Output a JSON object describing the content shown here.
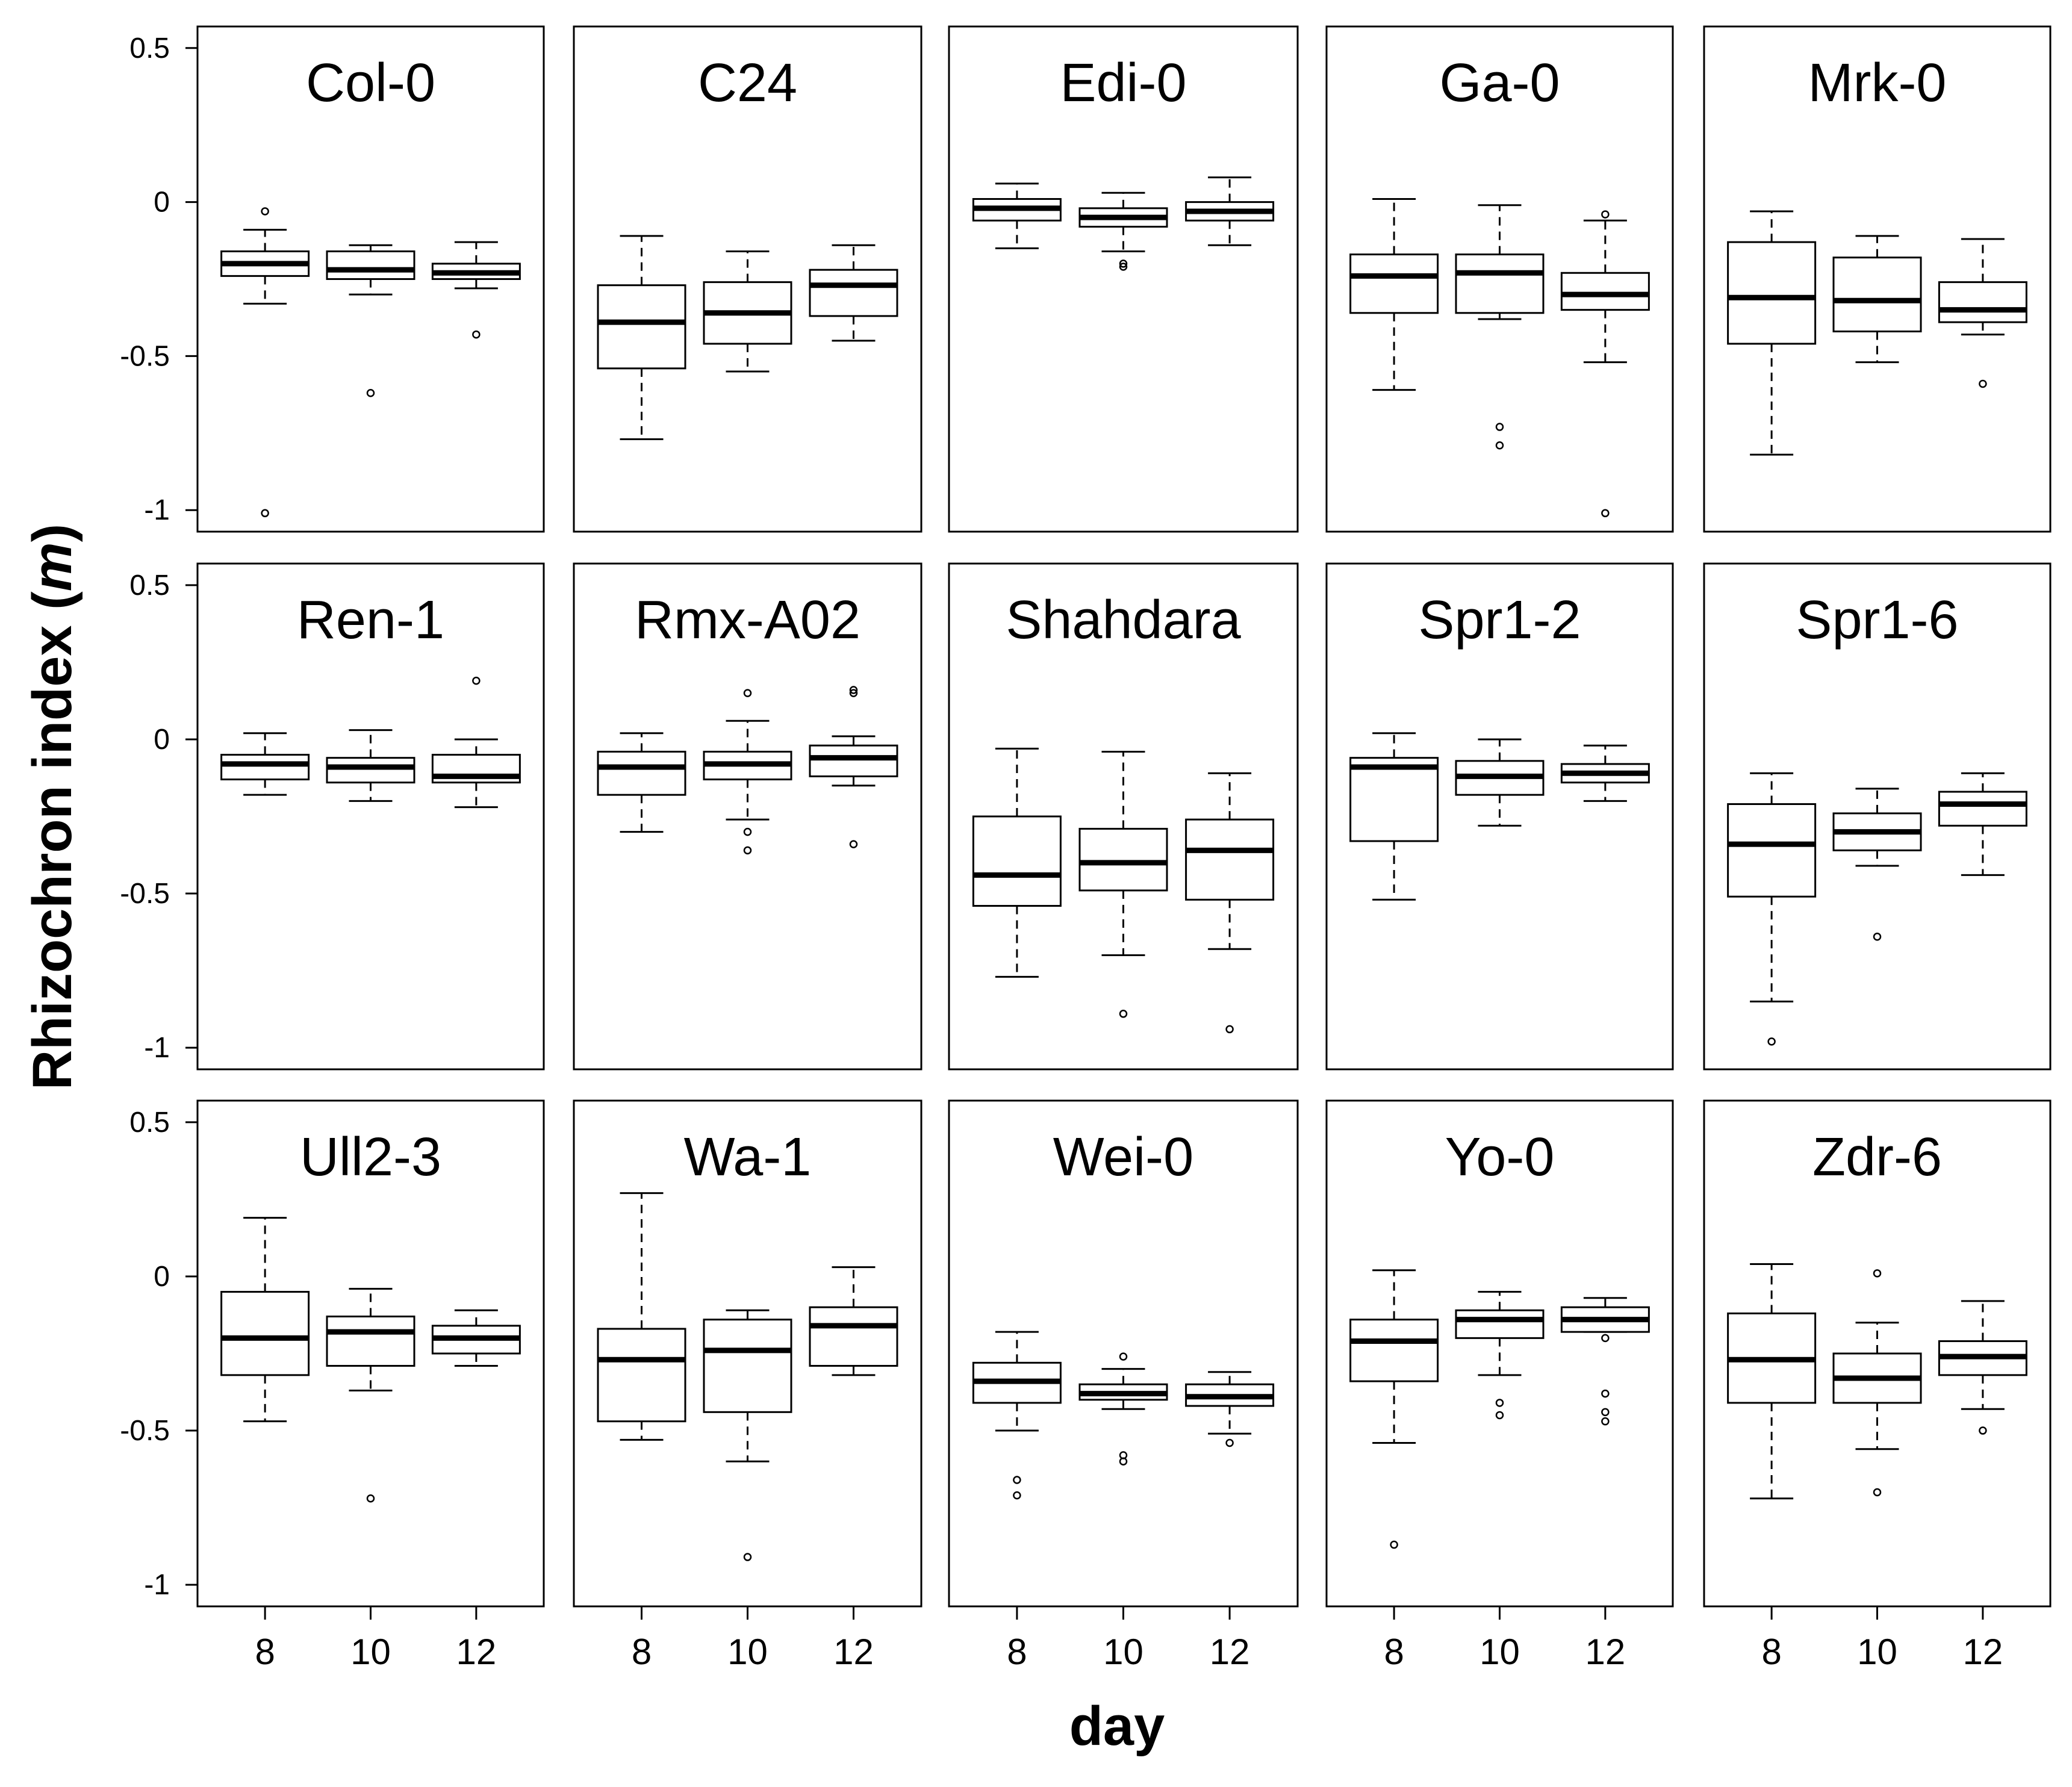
{
  "chart_data": {
    "type": "boxplot",
    "layout": "small-multiples 3 rows x 5 columns",
    "ylabel": "Rhizochron index",
    "ylabel_unit": "m",
    "xlabel": "day",
    "yticks": [
      0.5,
      0,
      -0.5,
      -1
    ],
    "ytick_labels": [
      "0.5",
      "0",
      "-0.5",
      "-1"
    ],
    "ylim": [
      -1.07,
      0.57
    ],
    "x_categories": [
      "8",
      "10",
      "12"
    ],
    "panels": [
      {
        "title": "Col-0",
        "boxes": [
          {
            "day": "8",
            "whisker_low": -0.33,
            "q1": -0.24,
            "median": -0.2,
            "q3": -0.16,
            "whisker_high": -0.09,
            "outliers": [
              -0.03,
              -1.01
            ]
          },
          {
            "day": "10",
            "whisker_low": -0.3,
            "q1": -0.25,
            "median": -0.22,
            "q3": -0.16,
            "whisker_high": -0.14,
            "outliers": [
              -0.62
            ]
          },
          {
            "day": "12",
            "whisker_low": -0.28,
            "q1": -0.25,
            "median": -0.23,
            "q3": -0.2,
            "whisker_high": -0.13,
            "outliers": [
              -0.43
            ]
          }
        ]
      },
      {
        "title": "C24",
        "boxes": [
          {
            "day": "8",
            "whisker_low": -0.77,
            "q1": -0.54,
            "median": -0.39,
            "q3": -0.27,
            "whisker_high": -0.11,
            "outliers": []
          },
          {
            "day": "10",
            "whisker_low": -0.55,
            "q1": -0.46,
            "median": -0.36,
            "q3": -0.26,
            "whisker_high": -0.16,
            "outliers": []
          },
          {
            "day": "12",
            "whisker_low": -0.45,
            "q1": -0.37,
            "median": -0.27,
            "q3": -0.22,
            "whisker_high": -0.14,
            "outliers": []
          }
        ]
      },
      {
        "title": "Edi-0",
        "boxes": [
          {
            "day": "8",
            "whisker_low": -0.15,
            "q1": -0.06,
            "median": -0.02,
            "q3": 0.01,
            "whisker_high": 0.06,
            "outliers": []
          },
          {
            "day": "10",
            "whisker_low": -0.16,
            "q1": -0.08,
            "median": -0.05,
            "q3": -0.02,
            "whisker_high": 0.03,
            "outliers": [
              -0.21,
              -0.2
            ]
          },
          {
            "day": "12",
            "whisker_low": -0.14,
            "q1": -0.06,
            "median": -0.03,
            "q3": 0.0,
            "whisker_high": 0.08,
            "outliers": []
          }
        ]
      },
      {
        "title": "Ga-0",
        "boxes": [
          {
            "day": "8",
            "whisker_low": -0.61,
            "q1": -0.36,
            "median": -0.24,
            "q3": -0.17,
            "whisker_high": 0.01,
            "outliers": []
          },
          {
            "day": "10",
            "whisker_low": -0.38,
            "q1": -0.36,
            "median": -0.23,
            "q3": -0.17,
            "whisker_high": -0.01,
            "outliers": [
              -0.73,
              -0.79
            ]
          },
          {
            "day": "12",
            "whisker_low": -0.52,
            "q1": -0.35,
            "median": -0.3,
            "q3": -0.23,
            "whisker_high": -0.06,
            "outliers": [
              -0.04,
              -1.01
            ]
          }
        ]
      },
      {
        "title": "Mrk-0",
        "boxes": [
          {
            "day": "8",
            "whisker_low": -0.82,
            "q1": -0.46,
            "median": -0.31,
            "q3": -0.13,
            "whisker_high": -0.03,
            "outliers": []
          },
          {
            "day": "10",
            "whisker_low": -0.52,
            "q1": -0.42,
            "median": -0.32,
            "q3": -0.18,
            "whisker_high": -0.11,
            "outliers": []
          },
          {
            "day": "12",
            "whisker_low": -0.43,
            "q1": -0.39,
            "median": -0.35,
            "q3": -0.26,
            "whisker_high": -0.12,
            "outliers": [
              -0.59
            ]
          }
        ]
      },
      {
        "title": "Ren-1",
        "boxes": [
          {
            "day": "8",
            "whisker_low": -0.18,
            "q1": -0.13,
            "median": -0.08,
            "q3": -0.05,
            "whisker_high": 0.02,
            "outliers": []
          },
          {
            "day": "10",
            "whisker_low": -0.2,
            "q1": -0.14,
            "median": -0.09,
            "q3": -0.06,
            "whisker_high": 0.03,
            "outliers": []
          },
          {
            "day": "12",
            "whisker_low": -0.22,
            "q1": -0.14,
            "median": -0.12,
            "q3": -0.05,
            "whisker_high": 0.0,
            "outliers": [
              0.19
            ]
          }
        ]
      },
      {
        "title": "Rmx-A02",
        "boxes": [
          {
            "day": "8",
            "whisker_low": -0.3,
            "q1": -0.18,
            "median": -0.09,
            "q3": -0.04,
            "whisker_high": 0.02,
            "outliers": []
          },
          {
            "day": "10",
            "whisker_low": -0.26,
            "q1": -0.13,
            "median": -0.08,
            "q3": -0.04,
            "whisker_high": 0.06,
            "outliers": [
              0.15,
              -0.3,
              -0.36
            ]
          },
          {
            "day": "12",
            "whisker_low": -0.15,
            "q1": -0.12,
            "median": -0.06,
            "q3": -0.02,
            "whisker_high": 0.01,
            "outliers": [
              0.16,
              0.15,
              -0.34
            ]
          }
        ]
      },
      {
        "title": "Shahdara",
        "boxes": [
          {
            "day": "8",
            "whisker_low": -0.77,
            "q1": -0.54,
            "median": -0.44,
            "q3": -0.25,
            "whisker_high": -0.03,
            "outliers": []
          },
          {
            "day": "10",
            "whisker_low": -0.7,
            "q1": -0.49,
            "median": -0.4,
            "q3": -0.29,
            "whisker_high": -0.04,
            "outliers": [
              -0.89
            ]
          },
          {
            "day": "12",
            "whisker_low": -0.68,
            "q1": -0.52,
            "median": -0.36,
            "q3": -0.26,
            "whisker_high": -0.11,
            "outliers": [
              -0.94
            ]
          }
        ]
      },
      {
        "title": "Spr1-2",
        "boxes": [
          {
            "day": "8",
            "whisker_low": -0.52,
            "q1": -0.33,
            "median": -0.09,
            "q3": -0.06,
            "whisker_high": 0.02,
            "outliers": []
          },
          {
            "day": "10",
            "whisker_low": -0.28,
            "q1": -0.18,
            "median": -0.12,
            "q3": -0.07,
            "whisker_high": 0.0,
            "outliers": []
          },
          {
            "day": "12",
            "whisker_low": -0.2,
            "q1": -0.14,
            "median": -0.11,
            "q3": -0.08,
            "whisker_high": -0.02,
            "outliers": []
          }
        ]
      },
      {
        "title": "Spr1-6",
        "boxes": [
          {
            "day": "8",
            "whisker_low": -0.85,
            "q1": -0.51,
            "median": -0.34,
            "q3": -0.21,
            "whisker_high": -0.11,
            "outliers": [
              -0.98
            ]
          },
          {
            "day": "10",
            "whisker_low": -0.41,
            "q1": -0.36,
            "median": -0.3,
            "q3": -0.24,
            "whisker_high": -0.16,
            "outliers": [
              -0.64
            ]
          },
          {
            "day": "12",
            "whisker_low": -0.44,
            "q1": -0.28,
            "median": -0.21,
            "q3": -0.17,
            "whisker_high": -0.11,
            "outliers": []
          }
        ]
      },
      {
        "title": "Ull2-3",
        "boxes": [
          {
            "day": "8",
            "whisker_low": -0.47,
            "q1": -0.32,
            "median": -0.2,
            "q3": -0.05,
            "whisker_high": 0.19,
            "outliers": []
          },
          {
            "day": "10",
            "whisker_low": -0.37,
            "q1": -0.29,
            "median": -0.18,
            "q3": -0.13,
            "whisker_high": -0.04,
            "outliers": [
              -0.72
            ]
          },
          {
            "day": "12",
            "whisker_low": -0.29,
            "q1": -0.25,
            "median": -0.2,
            "q3": -0.16,
            "whisker_high": -0.11,
            "outliers": []
          }
        ]
      },
      {
        "title": "Wa-1",
        "boxes": [
          {
            "day": "8",
            "whisker_low": -0.53,
            "q1": -0.47,
            "median": -0.27,
            "q3": -0.17,
            "whisker_high": 0.27,
            "outliers": []
          },
          {
            "day": "10",
            "whisker_low": -0.6,
            "q1": -0.44,
            "median": -0.24,
            "q3": -0.14,
            "whisker_high": -0.11,
            "outliers": [
              -0.91
            ]
          },
          {
            "day": "12",
            "whisker_low": -0.32,
            "q1": -0.29,
            "median": -0.16,
            "q3": -0.1,
            "whisker_high": 0.03,
            "outliers": []
          }
        ]
      },
      {
        "title": "Wei-0",
        "boxes": [
          {
            "day": "8",
            "whisker_low": -0.5,
            "q1": -0.41,
            "median": -0.34,
            "q3": -0.28,
            "whisker_high": -0.18,
            "outliers": [
              -0.66,
              -0.71
            ]
          },
          {
            "day": "10",
            "whisker_low": -0.43,
            "q1": -0.4,
            "median": -0.38,
            "q3": -0.35,
            "whisker_high": -0.3,
            "outliers": [
              -0.26,
              -0.58,
              -0.6
            ]
          },
          {
            "day": "12",
            "whisker_low": -0.51,
            "q1": -0.42,
            "median": -0.39,
            "q3": -0.35,
            "whisker_high": -0.31,
            "outliers": [
              -0.54
            ]
          }
        ]
      },
      {
        "title": "Yo-0",
        "boxes": [
          {
            "day": "8",
            "whisker_low": -0.54,
            "q1": -0.34,
            "median": -0.21,
            "q3": -0.14,
            "whisker_high": 0.02,
            "outliers": [
              -0.87
            ]
          },
          {
            "day": "10",
            "whisker_low": -0.32,
            "q1": -0.2,
            "median": -0.14,
            "q3": -0.11,
            "whisker_high": -0.05,
            "outliers": [
              -0.41,
              -0.45
            ]
          },
          {
            "day": "12",
            "whisker_low": -0.18,
            "q1": -0.18,
            "median": -0.14,
            "q3": -0.1,
            "whisker_high": -0.07,
            "outliers": [
              -0.2,
              -0.38,
              -0.44,
              -0.47
            ]
          }
        ]
      },
      {
        "title": "Zdr-6",
        "boxes": [
          {
            "day": "8",
            "whisker_low": -0.72,
            "q1": -0.41,
            "median": -0.27,
            "q3": -0.12,
            "whisker_high": 0.04,
            "outliers": []
          },
          {
            "day": "10",
            "whisker_low": -0.56,
            "q1": -0.41,
            "median": -0.33,
            "q3": -0.25,
            "whisker_high": -0.15,
            "outliers": [
              0.01,
              -0.7
            ]
          },
          {
            "day": "12",
            "whisker_low": -0.43,
            "q1": -0.32,
            "median": -0.26,
            "q3": -0.21,
            "whisker_high": -0.08,
            "outliers": [
              -0.5
            ]
          }
        ]
      }
    ]
  }
}
